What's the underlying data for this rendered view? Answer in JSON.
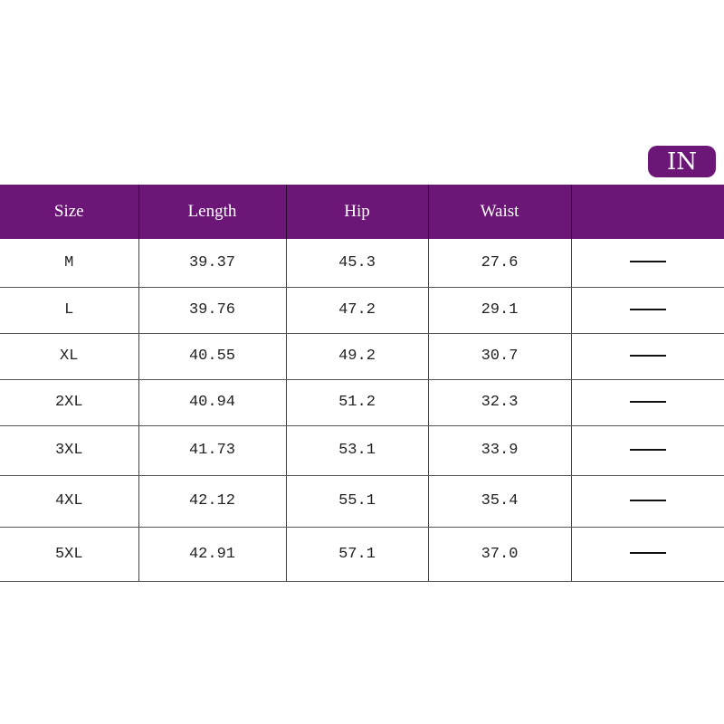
{
  "unit_badge": "IN",
  "colors": {
    "header": "#6c1778"
  },
  "headers": [
    "Size",
    "Length",
    "Hip",
    "Waist",
    ""
  ],
  "rows": [
    {
      "size": "M",
      "length": "39.37",
      "hip": "45.3",
      "waist": "27.6",
      "extra": "—"
    },
    {
      "size": "L",
      "length": "39.76",
      "hip": "47.2",
      "waist": "29.1",
      "extra": "—"
    },
    {
      "size": "XL",
      "length": "40.55",
      "hip": "49.2",
      "waist": "30.7",
      "extra": "—"
    },
    {
      "size": "2XL",
      "length": "40.94",
      "hip": "51.2",
      "waist": "32.3",
      "extra": "—"
    },
    {
      "size": "3XL",
      "length": "41.73",
      "hip": "53.1",
      "waist": "33.9",
      "extra": "—"
    },
    {
      "size": "4XL",
      "length": "42.12",
      "hip": "55.1",
      "waist": "35.4",
      "extra": "—"
    },
    {
      "size": "5XL",
      "length": "42.91",
      "hip": "57.1",
      "waist": "37.0",
      "extra": "—"
    }
  ]
}
